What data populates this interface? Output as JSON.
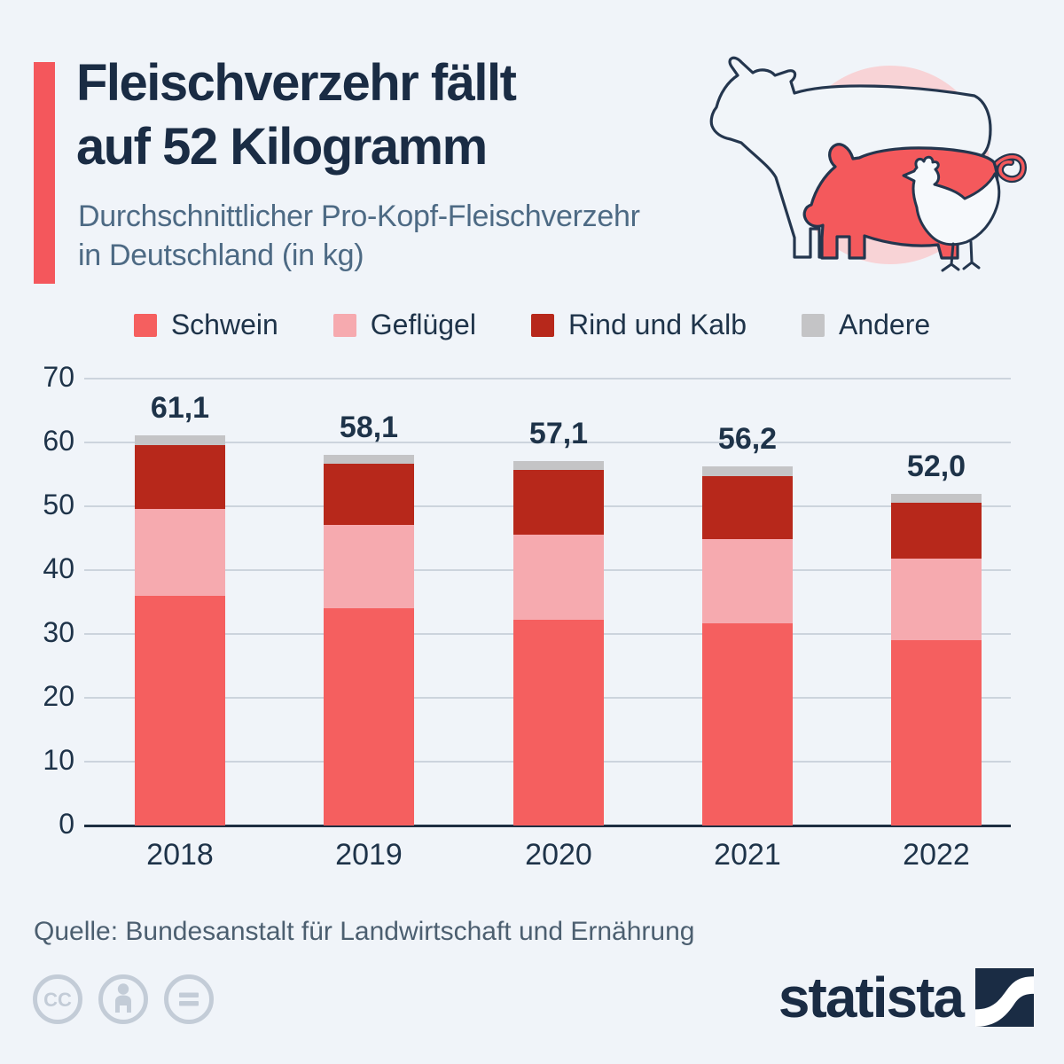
{
  "header": {
    "title_line1": "Fleischverzehr fällt",
    "title_line2": "auf 52 Kilogramm",
    "subtitle_line1": "Durchschnittlicher Pro-Kopf-Fleischverzehr",
    "subtitle_line2": "in Deutschland (in kg)",
    "accent_color": "#f4575c"
  },
  "legend": {
    "items": [
      {
        "label": "Schwein",
        "color": "#f55f5f"
      },
      {
        "label": "Geflügel",
        "color": "#f6aaaf"
      },
      {
        "label": "Rind und Kalb",
        "color": "#b7281b"
      },
      {
        "label": "Andere",
        "color": "#c4c4c6"
      }
    ]
  },
  "chart_data": {
    "type": "bar",
    "stacked": true,
    "categories": [
      "2018",
      "2019",
      "2020",
      "2021",
      "2022"
    ],
    "series": [
      {
        "name": "Schwein",
        "color": "#f55f5f",
        "values": [
          36.0,
          34.0,
          32.2,
          31.7,
          29.0
        ]
      },
      {
        "name": "Geflügel",
        "color": "#f6aaaf",
        "values": [
          13.6,
          13.1,
          13.4,
          13.2,
          12.8
        ]
      },
      {
        "name": "Rind und Kalb",
        "color": "#b7281b",
        "values": [
          10.0,
          9.6,
          10.1,
          9.8,
          8.7
        ]
      },
      {
        "name": "Andere",
        "color": "#c4c4c6",
        "values": [
          1.5,
          1.4,
          1.4,
          1.5,
          1.5
        ]
      }
    ],
    "totals": [
      61.1,
      58.1,
      57.1,
      56.2,
      52.0
    ],
    "total_labels": [
      "61,1",
      "58,1",
      "57,1",
      "56,2",
      "52,0"
    ],
    "ylabel": "",
    "xlabel": "",
    "ylim": [
      0,
      70
    ],
    "yticks": [
      0,
      10,
      20,
      30,
      40,
      50,
      60,
      70
    ],
    "grid": true,
    "legend_position": "top",
    "colors_meta": {
      "grid": "#ccd4dd",
      "axis": "#1e2f42",
      "background": "#f0f4f9"
    }
  },
  "footer": {
    "source": "Quelle: Bundesanstalt für Landwirtschaft und Ernährung",
    "license_icons": [
      "creative-commons-icon",
      "attribution-person-icon",
      "no-derivatives-equals-icon"
    ],
    "brand": "statista"
  }
}
